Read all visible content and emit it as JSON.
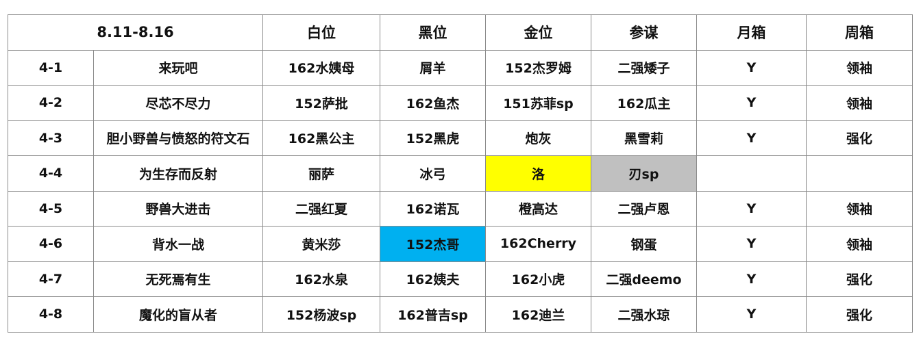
{
  "header": {
    "period": "8.11-8.16",
    "columns": [
      "白位",
      "黑位",
      "金位",
      "参谋",
      "月箱",
      "周箱"
    ]
  },
  "highlight_colors": {
    "yellow": "#FFFF00",
    "gray": "#C0C0C0",
    "blue": "#00B0F0"
  },
  "rows": [
    {
      "id": "4-1",
      "name": "来玩吧",
      "cells": [
        "162水姨母",
        "屑羊",
        "152杰罗姆",
        "二强矮子",
        "Y",
        "领袖"
      ]
    },
    {
      "id": "4-2",
      "name": "尽芯不尽力",
      "cells": [
        "152萨批",
        "162鱼杰",
        "151苏菲sp",
        "162瓜主",
        "Y",
        "领袖"
      ]
    },
    {
      "id": "4-3",
      "name": "胆小野兽与愤怒的符文石",
      "cells": [
        "162黑公主",
        "152黑虎",
        "炮灰",
        "黑雪莉",
        "Y",
        "强化"
      ]
    },
    {
      "id": "4-4",
      "name": "为生存而反射",
      "cells": [
        "丽萨",
        "冰弓",
        "洛",
        "刃sp",
        "",
        ""
      ]
    },
    {
      "id": "4-5",
      "name": "野兽大进击",
      "cells": [
        "二强红夏",
        "162诺瓦",
        "橙高达",
        "二强卢恩",
        "Y",
        "领袖"
      ]
    },
    {
      "id": "4-6",
      "name": "背水一战",
      "cells": [
        "黄米莎",
        "152杰哥",
        "162Cherry",
        "钢蛋",
        "Y",
        "领袖"
      ]
    },
    {
      "id": "4-7",
      "name": "无死焉有生",
      "cells": [
        "162水泉",
        "162姨夫",
        "162小虎",
        "二强deemo",
        "Y",
        "强化"
      ]
    },
    {
      "id": "4-8",
      "name": "魔化的盲从者",
      "cells": [
        "152杨波sp",
        "162普吉sp",
        "162迪兰",
        "二强水琼",
        "Y",
        "强化"
      ]
    }
  ],
  "highlighted_cells": [
    {
      "row": "4-4",
      "column": "金位",
      "color": "yellow"
    },
    {
      "row": "4-4",
      "column": "参谋",
      "color": "gray"
    },
    {
      "row": "4-6",
      "column": "黑位",
      "color": "blue"
    }
  ]
}
